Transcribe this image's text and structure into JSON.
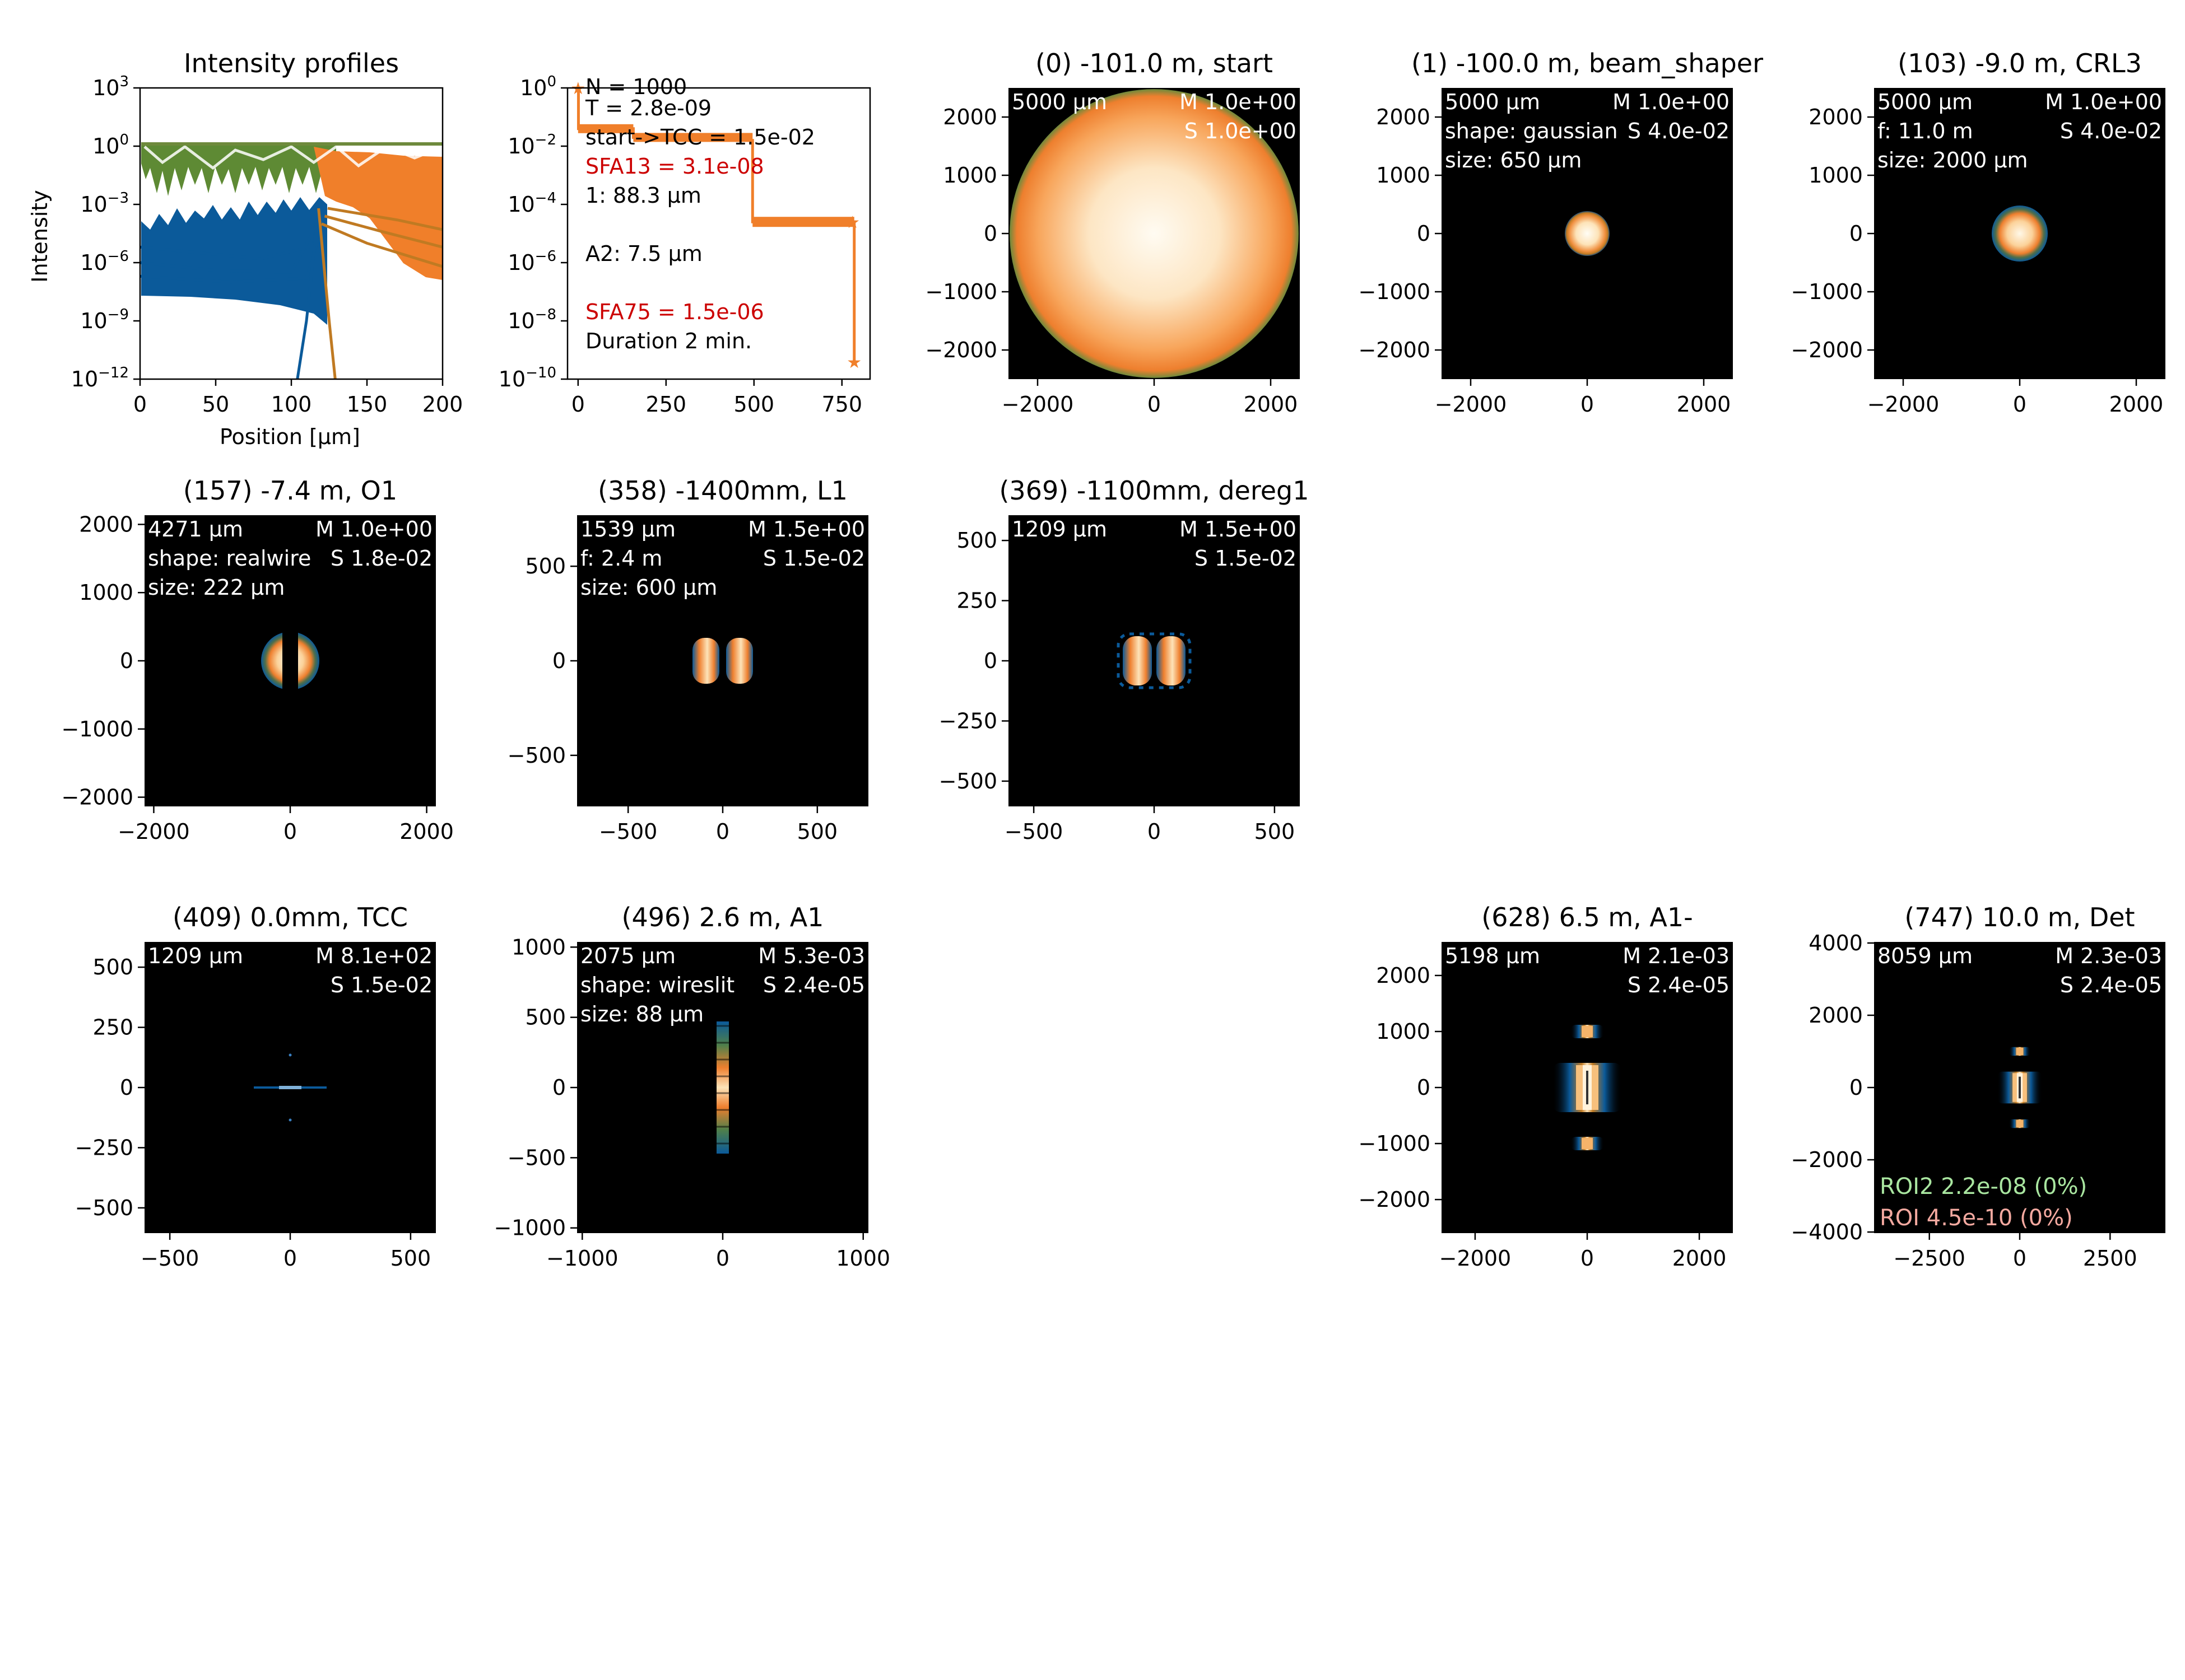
{
  "chart_data": [
    {
      "type": "line",
      "title": "Intensity profiles",
      "xlabel": "Position [μm]",
      "ylabel": "Intensity",
      "xlim": [
        0,
        200
      ],
      "ylim_log10": [
        -12,
        3
      ],
      "yscale": "log",
      "xticks": [
        {
          "v": 0,
          "label": "0"
        },
        {
          "v": 50,
          "label": "50"
        },
        {
          "v": 100,
          "label": "100"
        },
        {
          "v": 150,
          "label": "150"
        },
        {
          "v": 200,
          "label": "200"
        }
      ],
      "yticks": [
        {
          "v": 3,
          "base": "10",
          "exp": "3"
        },
        {
          "v": 0,
          "base": "10",
          "exp": "0"
        },
        {
          "v": -3,
          "base": "10",
          "exp": "−3"
        },
        {
          "v": -6,
          "base": "10",
          "exp": "−6"
        },
        {
          "v": -9,
          "base": "10",
          "exp": "−9"
        },
        {
          "v": -12,
          "base": "10",
          "exp": "−12"
        }
      ],
      "series": [
        {
          "color": "#0b5a9a",
          "kind": "profile",
          "log_floor": [
            [
              0,
              -5.2
            ],
            [
              40,
              -5.5
            ],
            [
              80,
              -5.8
            ],
            [
              112,
              -5.2
            ],
            [
              118,
              -3.5
            ]
          ]
        },
        {
          "color": "#0b5a9a",
          "kind": "profile",
          "log_floor": [
            [
              0,
              -6.0
            ],
            [
              50,
              -6.4
            ],
            [
              100,
              -6.5
            ],
            [
              118,
              -3.9
            ]
          ]
        },
        {
          "color": "#0b5a9a",
          "kind": "profile",
          "log_floor": [
            [
              0,
              -6.7
            ],
            [
              60,
              -7.0
            ],
            [
              110,
              -6.8
            ],
            [
              120,
              -4.2
            ]
          ]
        },
        {
          "color": "#c07a22",
          "kind": "profile",
          "log_floor": [
            [
              120,
              -4.0
            ],
            [
              150,
              -5.0
            ],
            [
              200,
              -6.2
            ]
          ]
        },
        {
          "color": "#c07a22",
          "kind": "profile",
          "log_floor": [
            [
              122,
              -3.6
            ],
            [
              160,
              -4.4
            ],
            [
              200,
              -5.2
            ]
          ]
        },
        {
          "color": "#c07a22",
          "kind": "profile",
          "log_floor": [
            [
              124,
              -3.2
            ],
            [
              170,
              -3.8
            ],
            [
              200,
              -4.3
            ]
          ]
        },
        {
          "color": "#0b5a9a",
          "kind": "spike",
          "points": [
            [
              118,
              -3.2
            ],
            [
              110,
              -9
            ],
            [
              104,
              -12
            ]
          ]
        },
        {
          "color": "#c07a22",
          "kind": "spike",
          "points": [
            [
              118,
              -3.2
            ],
            [
              125,
              -9
            ],
            [
              129,
              -12
            ]
          ]
        }
      ]
    },
    {
      "type": "line",
      "yscale": "log",
      "xlim": [
        -30,
        830
      ],
      "ylim_log10": [
        -10,
        0
      ],
      "xticks": [
        {
          "v": 0,
          "label": "0"
        },
        {
          "v": 250,
          "label": "250"
        },
        {
          "v": 500,
          "label": "500"
        },
        {
          "v": 750,
          "label": "750"
        }
      ],
      "yticks": [
        {
          "v": 0,
          "base": "10",
          "exp": "0"
        },
        {
          "v": -2,
          "base": "10",
          "exp": "−2"
        },
        {
          "v": -4,
          "base": "10",
          "exp": "−4"
        },
        {
          "v": -6,
          "base": "10",
          "exp": "−6"
        },
        {
          "v": -8,
          "base": "10",
          "exp": "−8"
        },
        {
          "v": -10,
          "base": "10",
          "exp": "−10"
        }
      ],
      "series": [
        {
          "color": "#f07f2a",
          "points": [
            [
              0,
              0
            ],
            [
              1,
              -1.4
            ],
            [
              103,
              -1.4
            ],
            [
              157,
              -1.7
            ],
            [
              358,
              -1.8
            ],
            [
              369,
              -1.8
            ],
            [
              409,
              -1.8
            ],
            [
              496,
              -4.6
            ],
            [
              628,
              -4.6
            ],
            [
              747,
              -4.6
            ],
            [
              780,
              -4.6
            ],
            [
              785,
              -9.4
            ]
          ]
        }
      ],
      "annotations": [
        {
          "text": "N = 1000",
          "color": "#000000"
        },
        {
          "text": "T = 2.8e-09",
          "color": "#000000"
        },
        {
          "text": "start->TCC = 1.5e-02",
          "color": "#000000"
        },
        {
          "text": "SFA13 = 3.1e-08",
          "color": "#cc0000"
        },
        {
          "text": "1: 88.3 μm",
          "color": "#000000"
        },
        {
          "text": "A2: 7.5 μm",
          "color": "#000000"
        },
        {
          "text": "SFA75 = 1.5e-06",
          "color": "#cc0000"
        },
        {
          "text": "Duration 2 min.",
          "color": "#000000"
        }
      ]
    },
    {
      "type": "heatmap",
      "title": "(0) -101.0 m, start",
      "extent": 2500,
      "ticks": [
        -2000,
        -1000,
        0,
        1000,
        2000
      ],
      "xticks": [
        -2000,
        0,
        2000
      ],
      "labels_left": [
        "5000 μm"
      ],
      "labels_right": [
        "M 1.0e+00",
        "S 1.0e+00"
      ],
      "beam": "disk-large"
    },
    {
      "type": "heatmap",
      "title": "(1) -100.0 m, beam_shaper",
      "extent": 2500,
      "ticks": [
        -2000,
        -1000,
        0,
        1000,
        2000
      ],
      "xticks": [
        -2000,
        0,
        2000
      ],
      "labels_left": [
        "5000 μm",
        "shape: gaussian",
        "size: 650 μm"
      ],
      "labels_right": [
        "M 1.0e+00",
        "S 4.0e-02"
      ],
      "beam": "disk-small"
    },
    {
      "type": "heatmap",
      "title": "(103) -9.0 m, CRL3",
      "extent": 2500,
      "ticks": [
        -2000,
        -1000,
        0,
        1000,
        2000
      ],
      "xticks": [
        -2000,
        0,
        2000
      ],
      "labels_left": [
        "5000 μm",
        "f: 11.0 m",
        "size: 2000 μm"
      ],
      "labels_right": [
        "M 1.0e+00",
        "S 4.0e-02"
      ],
      "beam": "disk-small-rim"
    },
    {
      "type": "heatmap",
      "title": "(157) -7.4 m, O1",
      "extent": 2135,
      "ticks": [
        -2000,
        -1000,
        0,
        1000,
        2000
      ],
      "xticks": [
        -2000,
        0,
        2000
      ],
      "labels_left": [
        "4271 μm",
        "shape: realwire",
        "size: 222 μm"
      ],
      "labels_right": [
        "M 1.0e+00",
        "S 1.8e-02"
      ],
      "beam": "disk-wire"
    },
    {
      "type": "heatmap",
      "title": "(358) -1400mm, L1",
      "extent": 770,
      "ticks": [
        -500,
        0,
        500
      ],
      "xticks": [
        -500,
        0,
        500
      ],
      "labels_left": [
        "1539 μm",
        "f: 2.4 m",
        "size: 600 μm"
      ],
      "labels_right": [
        "M 1.5e+00",
        "S 1.5e-02"
      ],
      "beam": "split"
    },
    {
      "type": "heatmap",
      "title": "(369) -1100mm, dereg1",
      "extent": 605,
      "ticks": [
        -500,
        -250,
        0,
        250,
        500
      ],
      "xticks": [
        -500,
        0,
        500
      ],
      "labels_left": [
        "1209 μm"
      ],
      "labels_right": [
        "M 1.5e+00",
        "S 1.5e-02"
      ],
      "beam": "split-fuzzy"
    },
    {
      "type": "heatmap",
      "title": "(409) 0.0mm, TCC",
      "extent": 605,
      "ticks": [
        -500,
        -250,
        0,
        250,
        500
      ],
      "xticks": [
        -500,
        0,
        500
      ],
      "labels_left": [
        "1209 μm"
      ],
      "labels_right": [
        "M 8.1e+02",
        "S 1.5e-02"
      ],
      "beam": "focus"
    },
    {
      "type": "heatmap",
      "title": "(496) 2.6 m, A1",
      "extent": 1037,
      "ticks": [
        -1000,
        -500,
        0,
        500,
        1000
      ],
      "xticks": [
        -1000,
        0,
        1000
      ],
      "labels_left": [
        "2075 μm",
        "shape: wireslit",
        "size: 88 μm"
      ],
      "labels_right": [
        "M 5.3e-03",
        "S 2.4e-05"
      ],
      "beam": "slit"
    },
    {
      "type": "heatmap",
      "title": "(628) 6.5 m, A1-",
      "extent": 2599,
      "ticks": [
        -2000,
        -1000,
        0,
        1000,
        2000
      ],
      "xticks": [
        -2000,
        0,
        2000
      ],
      "labels_left": [
        "5198 μm"
      ],
      "labels_right": [
        "M 2.1e-03",
        "S 2.4e-05"
      ],
      "beam": "diffraction"
    },
    {
      "type": "heatmap",
      "title": "(747) 10.0 m, Det",
      "extent": 4030,
      "ticks": [
        -4000,
        -2000,
        0,
        2000,
        4000
      ],
      "xticks": [
        -2500,
        0,
        2500
      ],
      "labels_left": [
        "8059 μm"
      ],
      "labels_right": [
        "M 2.3e-03",
        "S 2.4e-05"
      ],
      "labels_bottom": [
        {
          "text": "ROI2 2.2e-08 (0%)",
          "color": "#a9e6a0"
        },
        {
          "text": "ROI 4.5e-10 (0%)",
          "color": "#f4a9a0"
        }
      ],
      "beam": "diffraction"
    }
  ]
}
